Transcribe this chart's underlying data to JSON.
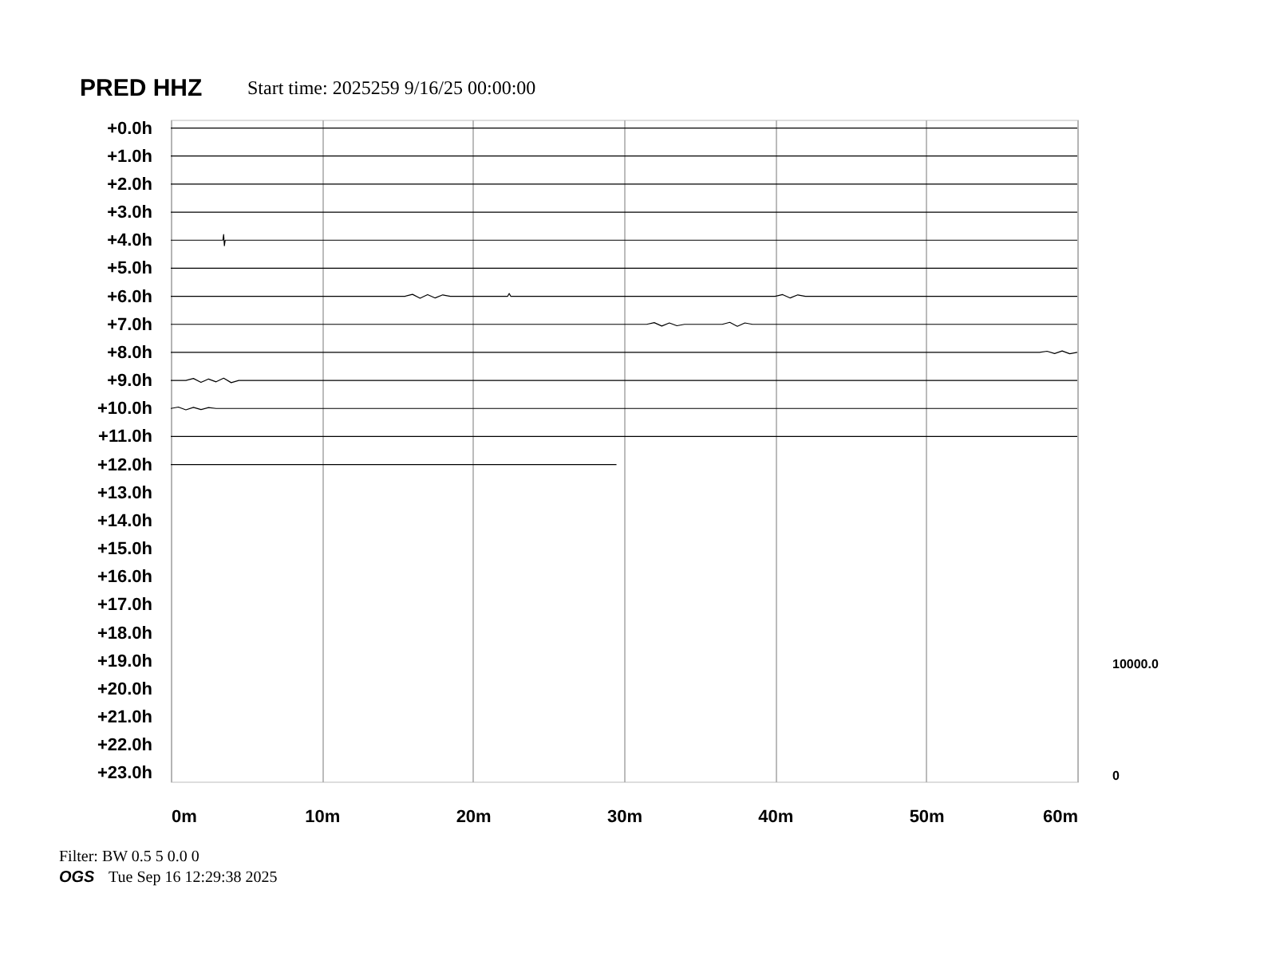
{
  "chart_data": {
    "type": "line",
    "title": "PRED HHZ",
    "subtitle": "Start time: 2025259  9/16/25 00:00:00",
    "annotations": [
      "Filter: BW 0.5 5 0.0 0",
      "OGS",
      "Tue Sep 16 12:29:38 2025",
      "10000.0",
      "0"
    ],
    "xlim": [
      0,
      60
    ],
    "xticks": [
      {
        "value": 0,
        "label": "0m"
      },
      {
        "value": 10,
        "label": "10m"
      },
      {
        "value": 20,
        "label": "20m"
      },
      {
        "value": 30,
        "label": "30m"
      },
      {
        "value": 40,
        "label": "40m"
      },
      {
        "value": 50,
        "label": "50m"
      },
      {
        "value": 60,
        "label": "60m"
      }
    ],
    "ylim": [
      23.3,
      -0.3
    ],
    "yticks": [
      {
        "value": 0,
        "label": "+0.0h"
      },
      {
        "value": 1,
        "label": "+1.0h"
      },
      {
        "value": 2,
        "label": "+2.0h"
      },
      {
        "value": 3,
        "label": "+3.0h"
      },
      {
        "value": 4,
        "label": "+4.0h"
      },
      {
        "value": 5,
        "label": "+5.0h"
      },
      {
        "value": 6,
        "label": "+6.0h"
      },
      {
        "value": 7,
        "label": "+7.0h"
      },
      {
        "value": 8,
        "label": "+8.0h"
      },
      {
        "value": 9,
        "label": "+9.0h"
      },
      {
        "value": 10,
        "label": "+10.0h"
      },
      {
        "value": 11,
        "label": "+11.0h"
      },
      {
        "value": 12,
        "label": "+12.0h"
      },
      {
        "value": 13,
        "label": "+13.0h"
      },
      {
        "value": 14,
        "label": "+14.0h"
      },
      {
        "value": 15,
        "label": "+15.0h"
      },
      {
        "value": 16,
        "label": "+16.0h"
      },
      {
        "value": 17,
        "label": "+17.0h"
      },
      {
        "value": 18,
        "label": "+18.0h"
      },
      {
        "value": 19,
        "label": "+19.0h"
      },
      {
        "value": 20,
        "label": "+20.0h"
      },
      {
        "value": 21,
        "label": "+21.0h"
      },
      {
        "value": 22,
        "label": "+22.0h"
      },
      {
        "value": 23,
        "label": "+23.0h"
      }
    ],
    "grid": "x",
    "legend": false,
    "marker": "none",
    "line_style": "solid",
    "series": [
      {
        "color": "#000000",
        "x": [
          0,
          60
        ],
        "values": [
          0,
          0
        ]
      },
      {
        "color": "#000000",
        "x": [
          0,
          60
        ],
        "values": [
          1,
          1
        ]
      },
      {
        "color": "#000000",
        "x": [
          0,
          60
        ],
        "values": [
          2,
          2
        ]
      },
      {
        "color": "#000000",
        "x": [
          0,
          60
        ],
        "values": [
          3,
          3
        ]
      },
      {
        "color": "#000000",
        "x": [
          0,
          3.45,
          3.5,
          3.55,
          3.6,
          60
        ],
        "values": [
          4,
          4,
          3.8,
          4.2,
          4,
          4
        ]
      },
      {
        "color": "#000000",
        "x": [
          0,
          60
        ],
        "values": [
          5,
          5
        ]
      },
      {
        "color": "#000000",
        "x": [
          0,
          15.5,
          16,
          16.5,
          17,
          17.5,
          18,
          18.5,
          22.3,
          22.4,
          22.5,
          40,
          40.5,
          41,
          41.5,
          42,
          60
        ],
        "values": [
          6,
          6,
          5.93,
          6.07,
          5.94,
          6.06,
          5.95,
          6,
          6,
          5.9,
          6,
          6,
          5.94,
          6.06,
          5.95,
          6,
          6
        ]
      },
      {
        "color": "#000000",
        "x": [
          0,
          31.5,
          32,
          32.5,
          33,
          33.5,
          34,
          36.5,
          37,
          37.5,
          38,
          38.5,
          60
        ],
        "values": [
          7,
          7,
          6.94,
          7.06,
          6.95,
          7.05,
          7,
          7,
          6.93,
          7.07,
          6.95,
          7,
          7
        ]
      },
      {
        "color": "#000000",
        "x": [
          0,
          57.5,
          58,
          58.5,
          59,
          59.5,
          60
        ],
        "values": [
          8,
          8,
          7.96,
          8.04,
          7.95,
          8.05,
          8
        ]
      },
      {
        "color": "#000000",
        "x": [
          0,
          1,
          1.5,
          2,
          2.5,
          3,
          3.5,
          4,
          4.5,
          60
        ],
        "values": [
          9,
          9,
          8.93,
          9.07,
          8.95,
          9.05,
          8.92,
          9.08,
          9,
          9
        ]
      },
      {
        "color": "#000000",
        "x": [
          0,
          0.5,
          1,
          1.5,
          2,
          2.5,
          3,
          60
        ],
        "values": [
          10,
          9.95,
          10.05,
          9.96,
          10.04,
          9.97,
          10,
          10
        ]
      },
      {
        "color": "#000000",
        "x": [
          0,
          60
        ],
        "values": [
          11,
          11
        ]
      },
      {
        "color": "#000000",
        "x": [
          0,
          29.5
        ],
        "values": [
          12,
          12
        ]
      }
    ]
  }
}
